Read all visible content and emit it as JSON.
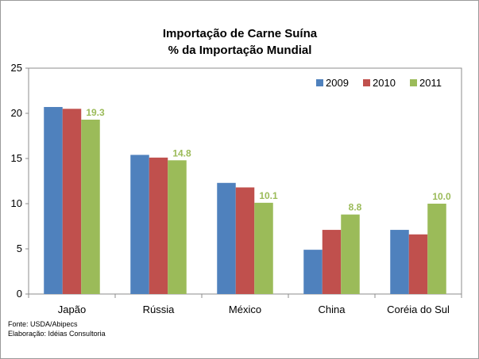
{
  "chart_data": {
    "type": "bar",
    "title": "Importação de Carne Suína",
    "subtitle": "% da Importação Mundial",
    "categories": [
      "Japão",
      "Rússia",
      "México",
      "China",
      "Coréia do Sul"
    ],
    "series": [
      {
        "name": "2009",
        "color": "#4f81bd",
        "values": [
          20.7,
          15.4,
          12.3,
          4.9,
          7.1
        ]
      },
      {
        "name": "2010",
        "color": "#c0504d",
        "values": [
          20.5,
          15.1,
          11.8,
          7.1,
          6.6
        ]
      },
      {
        "name": "2011",
        "color": "#9bbb59",
        "values": [
          19.3,
          14.8,
          10.1,
          8.8,
          10.0
        ],
        "data_labels": [
          "19.3",
          "14.8",
          "10.1",
          "8.8",
          "10.0"
        ]
      }
    ],
    "ylim": [
      0,
      25
    ],
    "yticks": [
      0,
      5,
      10,
      15,
      20,
      25
    ],
    "grid": false,
    "legend_position": "top-right"
  },
  "footnotes": {
    "source": "Fonte: USDA/Abipecs",
    "credit": "Elaboração: Idéias Consultoria"
  }
}
